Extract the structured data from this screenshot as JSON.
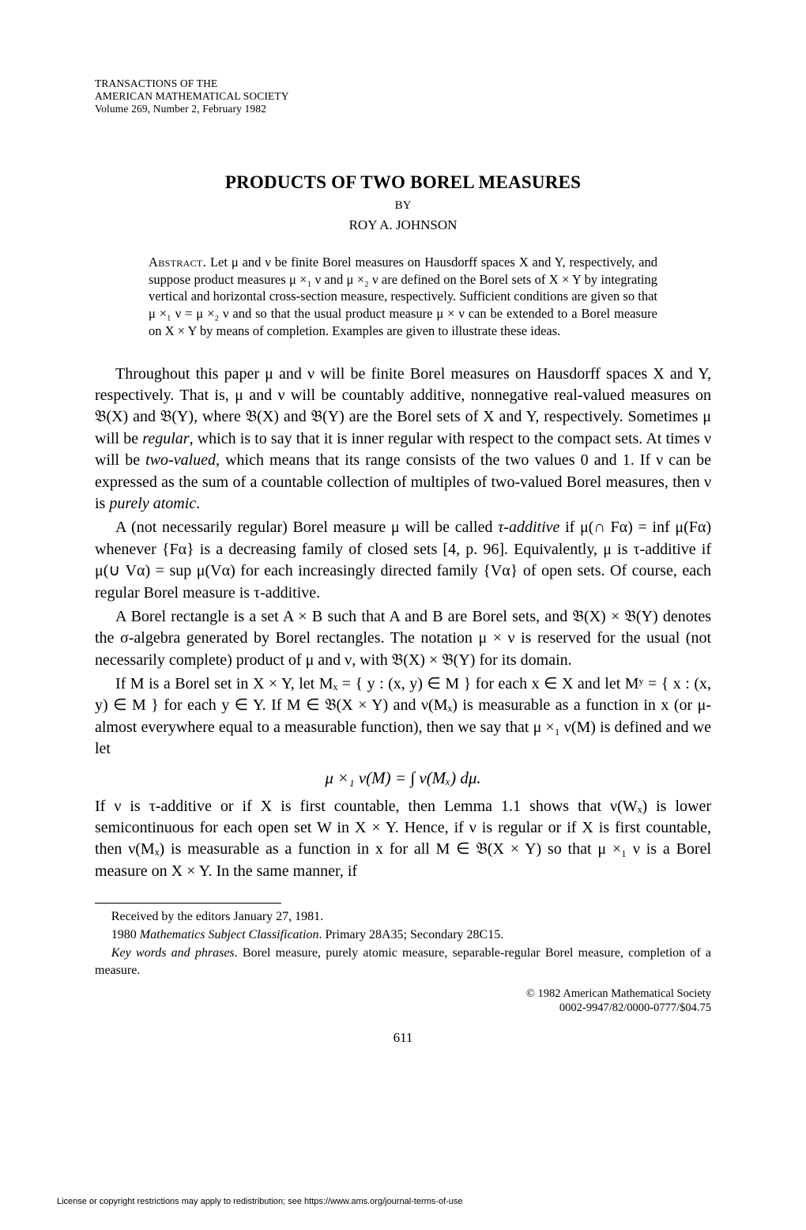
{
  "journal": {
    "line1": "TRANSACTIONS OF THE",
    "line2": "AMERICAN MATHEMATICAL SOCIETY",
    "line3": "Volume 269, Number 2, February 1982"
  },
  "title": "PRODUCTS OF TWO BOREL MEASURES",
  "byline": "BY",
  "author": "ROY A. JOHNSON",
  "abstract": {
    "label": "Abstract.",
    "text": " Let μ and ν be finite Borel measures on Hausdorff spaces X and Y, respectively, and suppose product measures μ ×₁ ν and μ ×₂ ν are defined on the Borel sets of X × Y by integrating vertical and horizontal cross-section measure, respectively. Sufficient conditions are given so that μ ×₁ ν = μ ×₂ ν and so that the usual product measure μ × ν can be extended to a Borel measure on X × Y by means of completion. Examples are given to illustrate these ideas."
  },
  "paragraphs": {
    "p1a": "Throughout this paper μ and ν will be finite Borel measures on Hausdorff spaces X and Y, respectively. That is, μ and ν will be countably additive, nonnegative real-valued measures on 𝔅(X) and 𝔅(Y), where 𝔅(X) and 𝔅(Y) are the Borel sets of X and Y, respectively. Sometimes μ will be ",
    "p1_regular": "regular",
    "p1b": ", which is to say that it is inner regular with respect to the compact sets. At times ν will be ",
    "p1_twovalued": "two-valued",
    "p1c": ", which means that its range consists of the two values 0 and 1. If ν can be expressed as the sum of a countable collection of multiples of two-valued Borel measures, then ν is ",
    "p1_purely": "purely atomic",
    "p1d": ".",
    "p2a": "A (not necessarily regular) Borel measure μ will be called ",
    "p2_tau": "τ-additive",
    "p2b": " if μ(∩ Fα) = inf μ(Fα) whenever {Fα} is a decreasing family of closed sets [4, p. 96]. Equivalently, μ is τ-additive if μ(∪ Vα) = sup μ(Vα) for each increasingly directed family {Vα} of open sets. Of course, each regular Borel measure is τ-additive.",
    "p3": "A Borel rectangle is a set A × B such that A and B are Borel sets, and 𝔅(X) × 𝔅(Y) denotes the σ-algebra generated by Borel rectangles. The notation μ × ν is reserved for the usual (not necessarily complete) product of μ and ν, with 𝔅(X) × 𝔅(Y) for its domain.",
    "p4": "If M is a Borel set in X × Y, let Mₓ = { y : (x, y) ∈ M } for each x ∈ X and let Mʸ = { x : (x, y) ∈ M } for each y ∈ Y. If M ∈ 𝔅(X × Y) and ν(Mₓ) is measurable as a function in x (or μ-almost everywhere equal to a measurable function), then we say that μ ×₁ ν(M) is defined and we let",
    "eq": "μ ×₁ ν(M) = ∫ ν(Mₓ) dμ.",
    "p5": "If ν is τ-additive or if X is first countable, then Lemma 1.1 shows that ν(Wₓ) is lower semicontinuous for each open set W in X × Y. Hence, if ν is regular or if X is first countable, then ν(Mₓ) is measurable as a function in x for all M ∈ 𝔅(X × Y) so that μ ×₁ ν is a Borel measure on X × Y. In the same manner, if"
  },
  "footnotes": {
    "received": "Received by the editors January 27, 1981.",
    "msc_a": "1980 ",
    "msc_label": "Mathematics Subject Classification",
    "msc_b": ". Primary 28A35; Secondary 28C15.",
    "keywords_label": "Key words and phrases",
    "keywords_text": ". Borel measure, purely atomic measure, separable-regular Borel measure, completion of a measure."
  },
  "copyright": {
    "line1": "© 1982 American Mathematical Society",
    "line2": "0002-9947/82/0000-0777/$04.75"
  },
  "page_number": "611",
  "license_line": "License or copyright restrictions may apply to redistribution; see https://www.ams.org/journal-terms-of-use"
}
